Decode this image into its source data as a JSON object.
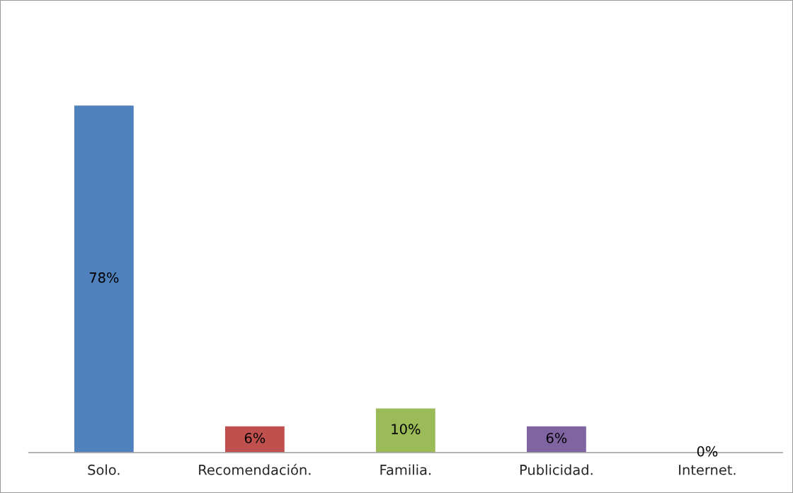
{
  "chart_data": {
    "type": "bar",
    "categories": [
      "Solo.",
      "Recomendación.",
      "Familia.",
      "Publicidad.",
      "Internet."
    ],
    "values": [
      78,
      6,
      10,
      6,
      0
    ],
    "value_labels": [
      "78%",
      "6%",
      "10%",
      "6%",
      "0%"
    ],
    "colors": [
      "#4f81bd",
      "#c0504d",
      "#9bbb59",
      "#8064a2",
      null
    ],
    "grid": false,
    "legend": false
  }
}
